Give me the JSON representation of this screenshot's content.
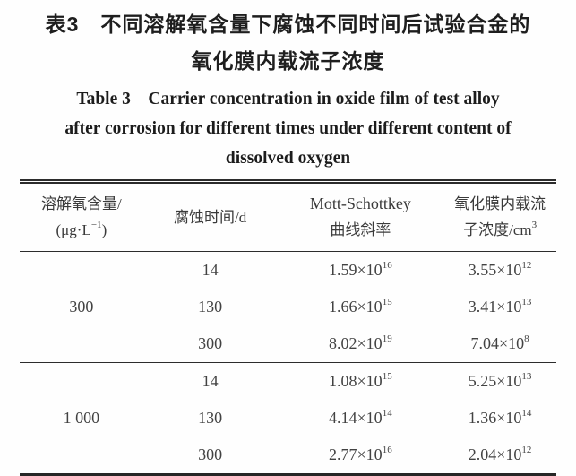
{
  "title_zh": {
    "line1": "表3　不同溶解氧含量下腐蚀不同时间后试验合金的",
    "line2": "氧化膜内载流子浓度"
  },
  "title_en": {
    "line1": "Table 3　Carrier concentration in oxide film of test alloy",
    "line2": "after corrosion for different times under different content of",
    "line3": "dissolved oxygen"
  },
  "table": {
    "headers": {
      "oxygen": {
        "line1": "溶解氧含量/",
        "unit": {
          "base": "(μg·L",
          "sup": "−1",
          "tail": ")"
        }
      },
      "time": "腐蚀时间/d",
      "slope": {
        "line1": "Mott-Schottkey",
        "line2": "曲线斜率"
      },
      "conc": {
        "line1": "氧化膜内载流",
        "unit": {
          "base": "子浓度/cm",
          "sup": "3"
        }
      }
    },
    "groups": [
      {
        "oxygen": "300"
      },
      {
        "oxygen": "1 000"
      }
    ],
    "rows": [
      {
        "time": "14",
        "slope": {
          "base": "1.59×10",
          "sup": "16"
        },
        "conc": {
          "base": "3.55×10",
          "sup": "12"
        }
      },
      {
        "time": "130",
        "slope": {
          "base": "1.66×10",
          "sup": "15"
        },
        "conc": {
          "base": "3.41×10",
          "sup": "13"
        }
      },
      {
        "time": "300",
        "slope": {
          "base": "8.02×10",
          "sup": "19"
        },
        "conc": {
          "base": "7.04×10",
          "sup": "8"
        }
      },
      {
        "time": "14",
        "slope": {
          "base": "1.08×10",
          "sup": "15"
        },
        "conc": {
          "base": "5.25×10",
          "sup": "13"
        }
      },
      {
        "time": "130",
        "slope": {
          "base": "4.14×10",
          "sup": "14"
        },
        "conc": {
          "base": "1.36×10",
          "sup": "14"
        }
      },
      {
        "time": "300",
        "slope": {
          "base": "2.77×10",
          "sup": "16"
        },
        "conc": {
          "base": "2.04×10",
          "sup": "12"
        }
      }
    ]
  },
  "chart_data": {
    "type": "table",
    "columns": [
      "溶解氧含量/(μg·L−1)",
      "腐蚀时间/d",
      "Mott-Schottkey曲线斜率",
      "氧化膜内载流子浓度/cm3"
    ],
    "rows": [
      [
        "300",
        14,
        1.59e+16,
        3550000000000.0
      ],
      [
        "300",
        130,
        1660000000000000.0,
        34100000000000.0
      ],
      [
        "300",
        300,
        8.02e+19,
        704000000.0
      ],
      [
        "1 000",
        14,
        1080000000000000.0,
        52500000000000.0
      ],
      [
        "1 000",
        130,
        414000000000000.0,
        136000000000000.0
      ],
      [
        "1 000",
        300,
        2.77e+16,
        2040000000000.0
      ]
    ]
  }
}
